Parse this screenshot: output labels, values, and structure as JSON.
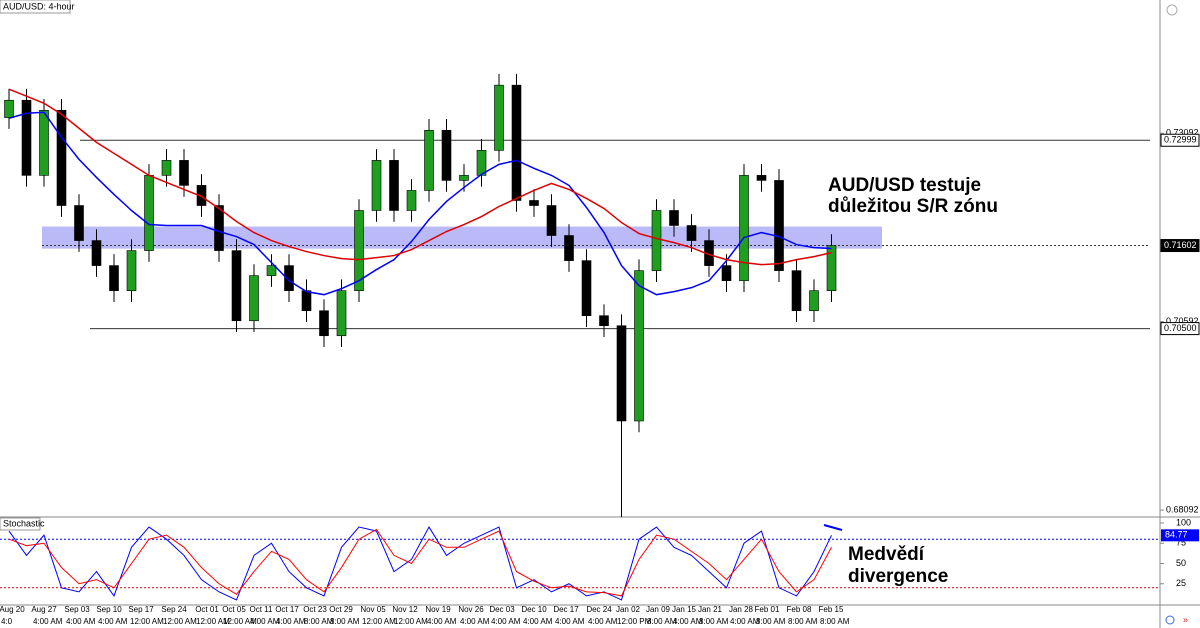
{
  "chart_data": [
    {
      "type": "candlestick",
      "title": "AUD/USD: 4-hour",
      "open": [
        0.733,
        0.7353,
        0.72533,
        0.73397,
        0.72133,
        0.71668,
        0.71336,
        0.71003,
        0.71535,
        0.72533,
        0.72732,
        0.724,
        0.72133,
        0.71535,
        0.70604,
        0.71203,
        0.71336,
        0.71003,
        0.70737,
        0.70405,
        0.71003,
        0.72067,
        0.72732,
        0.72067,
        0.72333,
        0.73131,
        0.72466,
        0.72533,
        0.72865,
        0.7373,
        0.722,
        0.72133,
        0.71735,
        0.71402,
        0.70671,
        0.70538,
        0.69274,
        0.71269,
        0.72067,
        0.71868,
        0.71668,
        0.71336,
        0.71136,
        0.72533,
        0.72466,
        0.71269,
        0.70737,
        0.71003
      ],
      "high": [
        0.7368,
        0.7368,
        0.73547,
        0.73547,
        0.72283,
        0.71818,
        0.71486,
        0.71685,
        0.72683,
        0.72882,
        0.72882,
        0.7255,
        0.72283,
        0.71685,
        0.71353,
        0.71486,
        0.71486,
        0.71153,
        0.70887,
        0.71153,
        0.72217,
        0.72882,
        0.72882,
        0.72483,
        0.73281,
        0.73281,
        0.72683,
        0.73015,
        0.7388,
        0.7388,
        0.7235,
        0.72283,
        0.71885,
        0.71552,
        0.70821,
        0.70688,
        0.71419,
        0.72217,
        0.72217,
        0.72018,
        0.71818,
        0.71486,
        0.72683,
        0.72683,
        0.72616,
        0.71419,
        0.71153,
        0.71752
      ],
      "low": [
        0.7315,
        0.72383,
        0.72383,
        0.71983,
        0.71518,
        0.71186,
        0.70853,
        0.70853,
        0.71385,
        0.72383,
        0.7225,
        0.71983,
        0.71385,
        0.70454,
        0.70454,
        0.71053,
        0.70853,
        0.70587,
        0.70255,
        0.70255,
        0.70853,
        0.71917,
        0.71917,
        0.71917,
        0.72183,
        0.72316,
        0.72316,
        0.72383,
        0.72715,
        0.7205,
        0.71983,
        0.71585,
        0.71252,
        0.70521,
        0.70388,
        0.68,
        0.69124,
        0.71119,
        0.71718,
        0.71518,
        0.71186,
        0.70986,
        0.70986,
        0.72316,
        0.71119,
        0.70587,
        0.70587,
        0.70853
      ],
      "close": [
        0.7353,
        0.72533,
        0.73397,
        0.72133,
        0.71668,
        0.71336,
        0.71003,
        0.71535,
        0.72533,
        0.72732,
        0.724,
        0.72133,
        0.71535,
        0.70604,
        0.71203,
        0.71336,
        0.71003,
        0.70737,
        0.70405,
        0.71003,
        0.72067,
        0.72732,
        0.72067,
        0.72333,
        0.73131,
        0.72466,
        0.72533,
        0.72865,
        0.7373,
        0.722,
        0.72133,
        0.71735,
        0.71402,
        0.70671,
        0.70538,
        0.69274,
        0.71269,
        0.72067,
        0.71868,
        0.71668,
        0.71336,
        0.71136,
        0.72533,
        0.72466,
        0.71269,
        0.70737,
        0.71003,
        0.71602
      ],
      "up_color": "#1f9e1f",
      "down_color": "#000000",
      "lines": [
        {
          "color": "#0000ff",
          "values": [
            0.73291,
            0.73357,
            0.7337,
            0.73038,
            0.72745,
            0.72506,
            0.7228,
            0.72067,
            0.71881,
            0.71868,
            0.71868,
            0.71868,
            0.71788,
            0.71721,
            0.71615,
            0.71375,
            0.71136,
            0.7099,
            0.7095,
            0.7103,
            0.71136,
            0.71283,
            0.71415,
            0.71655,
            0.71947,
            0.72187,
            0.72373,
            0.72546,
            0.72679,
            0.72732,
            0.72626,
            0.72533,
            0.724,
            0.72107,
            0.71774,
            0.71336,
            0.7107,
            0.7095,
            0.7099,
            0.71043,
            0.71136,
            0.71402,
            0.71708,
            0.71774,
            0.71721,
            0.71615,
            0.71575,
            0.71562
          ]
        },
        {
          "color": "#e00000",
          "values": [
            0.73676,
            0.73583,
            0.7349,
            0.73344,
            0.73158,
            0.72971,
            0.72825,
            0.72679,
            0.72533,
            0.72439,
            0.72346,
            0.72253,
            0.72094,
            0.71921,
            0.71774,
            0.71668,
            0.71588,
            0.71522,
            0.71469,
            0.71429,
            0.71415,
            0.71442,
            0.71469,
            0.71548,
            0.71668,
            0.71788,
            0.71881,
            0.71987,
            0.7212,
            0.72227,
            0.72333,
            0.72426,
            0.72346,
            0.72227,
            0.72094,
            0.71907,
            0.71761,
            0.71695,
            0.71641,
            0.71575,
            0.71482,
            0.71415,
            0.71375,
            0.71349,
            0.71362,
            0.71415,
            0.71455,
            0.71508
          ]
        }
      ],
      "levels": [
        0.72999,
        {
          "value": 0.705,
          "label": "0.70500"
        }
      ],
      "current_price": 0.71602,
      "zone": [
        0.71561,
        0.71854
      ],
      "zone_color": "#8c8cf5",
      "annotation": [
        "AUD/USD testuje",
        "důležitou S/R zónu"
      ],
      "ylim": [
        0.68,
        0.7486
      ],
      "yticks": [
        0.68092,
        0.70592,
        0.73092
      ],
      "time_labels": [
        "Aug 20",
        "Aug 27",
        "Sep 03",
        "Sep 10",
        "Sep 17",
        "Sep 24",
        "Oct 01",
        "Oct 05",
        "Oct 11",
        "Oct 17",
        "Oct 23",
        "Oct 29",
        "Nov 05",
        "Nov 12",
        "Nov 19",
        "Nov 26",
        "Dec 03",
        "Dec 10",
        "Dec 17",
        "Dec 24",
        "Jan 02",
        "Jan 09",
        "Jan 15",
        "Jan 21",
        "Jan 28",
        "Feb 01",
        "Feb 08",
        "Feb 15"
      ],
      "time_sublabels": [
        "4:0",
        "4:00 AM",
        "4:00 AM",
        "4:00 AM",
        "12:00 AM",
        "12:00 AM",
        "12:00 AM",
        "12:00 AM",
        "4:00 AM",
        "4:00 AM",
        "8:00 AM",
        "8:00 AM",
        "12:00 AM",
        "12:00 AM",
        "4:00 AM",
        "4:00 AM",
        "4:00 AM",
        "4:00 AM",
        "4:00 AM",
        "4:00 AM",
        "12:00 PM",
        "8:00 AM",
        "4:00 AM",
        "8:00 AM",
        "4:00 AM",
        "8:00 AM",
        "8:00 AM",
        "8:00 AM"
      ]
    },
    {
      "type": "stochastic",
      "title": "Stochastic",
      "series": [
        {
          "color": "#0000ff",
          "values": [
            90,
            60,
            85,
            20,
            15,
            40,
            10,
            70,
            95,
            80,
            60,
            30,
            15,
            5,
            60,
            75,
            40,
            20,
            10,
            70,
            95,
            90,
            40,
            55,
            95,
            60,
            75,
            85,
            95,
            20,
            30,
            15,
            25,
            10,
            15,
            5,
            80,
            95,
            70,
            60,
            40,
            20,
            75,
            90,
            20,
            10,
            40,
            84.77
          ]
        },
        {
          "color": "#ff0000",
          "values": [
            80,
            72,
            75,
            45,
            25,
            30,
            20,
            50,
            80,
            85,
            70,
            45,
            25,
            12,
            40,
            65,
            55,
            30,
            15,
            45,
            80,
            92,
            60,
            50,
            80,
            70,
            70,
            80,
            90,
            40,
            28,
            20,
            22,
            15,
            14,
            10,
            55,
            85,
            80,
            65,
            50,
            30,
            55,
            80,
            40,
            15,
            30,
            70
          ]
        }
      ],
      "levels": [
        80,
        20
      ],
      "current_value": 84.77,
      "ylim": [
        0,
        100
      ],
      "yticks": [
        25,
        50,
        75,
        100
      ],
      "annotation": [
        "Medvědí",
        "divergence"
      ]
    }
  ]
}
